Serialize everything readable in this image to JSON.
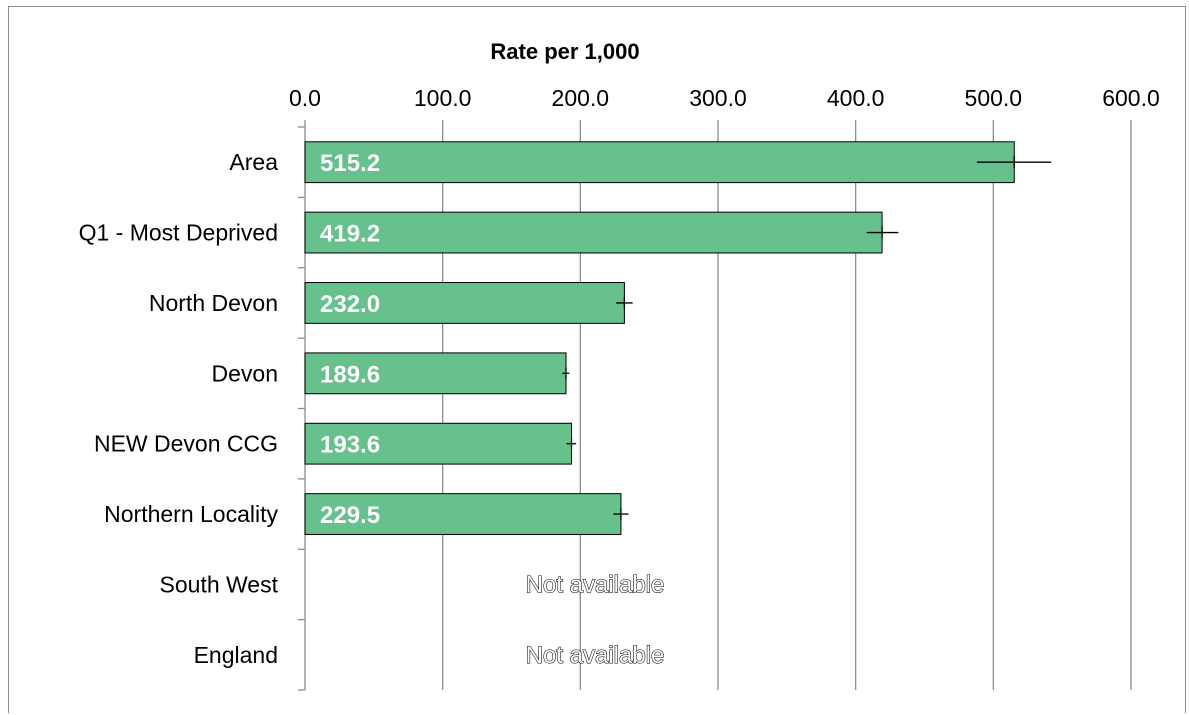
{
  "chart_data": {
    "type": "bar",
    "orientation": "horizontal",
    "xlabel": "Rate per 1,000",
    "xlim": [
      0,
      600
    ],
    "x_ticks": [
      "0.0",
      "100.0",
      "200.0",
      "300.0",
      "400.0",
      "500.0",
      "600.0"
    ],
    "categories": [
      "Area",
      "Q1 - Most Deprived",
      "North Devon",
      "Devon",
      "NEW Devon CCG",
      "Northern Locality",
      "South West",
      "England"
    ],
    "values": [
      515.2,
      419.2,
      232.0,
      189.6,
      193.6,
      229.5,
      null,
      null
    ],
    "value_labels": [
      "515.2",
      "419.2",
      "232.0",
      "189.6",
      "193.6",
      "229.5",
      "",
      ""
    ],
    "ci_lower": [
      488,
      408,
      226,
      187,
      190,
      224,
      null,
      null
    ],
    "ci_upper": [
      542,
      431,
      238,
      192,
      197,
      235,
      null,
      null
    ],
    "missing_label": "Not available",
    "grid": true,
    "bar_color": "#66c18c",
    "legend": "none"
  }
}
